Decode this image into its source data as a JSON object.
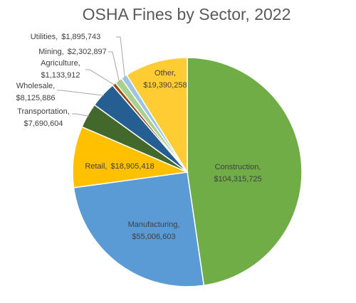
{
  "chart_data": {
    "type": "pie",
    "title": "OSHA Fines by Sector, 2022",
    "categories": [
      "Construction,",
      "Manufacturing,",
      "Retail,",
      "Transportation,",
      "Wholesale,",
      "Agriculture,",
      "Mining,",
      "Utilities,",
      "Other,"
    ],
    "values": [
      104315725,
      55006603,
      18905418,
      7690604,
      8125886,
      1133912,
      2302897,
      1895743,
      19390258
    ],
    "value_labels": [
      "$104,315,725",
      "$55,006,603",
      "$18,905,418",
      "$7,690,604",
      "$8,125,886",
      "$1,133,912",
      "$2,302,897",
      "$1,895,743",
      "$19,390,258"
    ],
    "colors": [
      "#70ad47",
      "#5b9bd5",
      "#ffc000",
      "#43682b",
      "#255e91",
      "#9e480e",
      "#a9d18e",
      "#9dc3e6",
      "#ffcd33"
    ]
  }
}
